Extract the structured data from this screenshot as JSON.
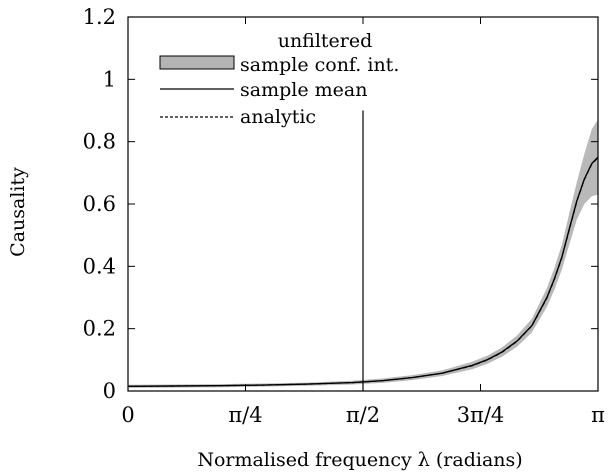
{
  "chart_data": {
    "type": "line",
    "xlabel": "Normalised frequency λ (radians)",
    "ylabel": "Causality",
    "xlim": [
      0,
      3.14159
    ],
    "ylim": [
      0,
      1.2
    ],
    "x_ticks": [
      {
        "value": 0,
        "label": "0"
      },
      {
        "value": 0.785398,
        "label": "π/4"
      },
      {
        "value": 1.570796,
        "label": "π/2"
      },
      {
        "value": 2.356194,
        "label": "3π/4"
      },
      {
        "value": 3.141593,
        "label": "π"
      }
    ],
    "y_ticks": [
      {
        "value": 0,
        "label": "0"
      },
      {
        "value": 0.2,
        "label": "0.2"
      },
      {
        "value": 0.4,
        "label": "0.4"
      },
      {
        "value": 0.6,
        "label": "0.6"
      },
      {
        "value": 0.8,
        "label": "0.8"
      },
      {
        "value": 1.0,
        "label": "1"
      },
      {
        "value": 1.2,
        "label": "1.2"
      }
    ],
    "grid": false,
    "legend": {
      "title": "unfiltered",
      "placement": "top-left",
      "entries": [
        "sample conf. int.",
        "sample mean",
        "analytic"
      ]
    },
    "vertical_marker": {
      "x": 1.570796,
      "y_top": 0.9
    },
    "x": [
      0,
      0.3,
      0.6,
      0.9,
      1.2,
      1.5,
      1.7,
      1.9,
      2.1,
      2.3,
      2.4,
      2.5,
      2.6,
      2.7,
      2.8,
      2.85,
      2.9,
      2.95,
      3.0,
      3.05,
      3.1,
      3.14
    ],
    "series": [
      {
        "name": "sample mean",
        "style": "solid",
        "values": [
          0.015,
          0.016,
          0.017,
          0.019,
          0.022,
          0.027,
          0.033,
          0.043,
          0.057,
          0.082,
          0.1,
          0.125,
          0.16,
          0.21,
          0.3,
          0.36,
          0.43,
          0.52,
          0.61,
          0.68,
          0.73,
          0.75
        ]
      },
      {
        "name": "analytic",
        "style": "dashed",
        "values": [
          0.015,
          0.016,
          0.017,
          0.019,
          0.022,
          0.027,
          0.033,
          0.043,
          0.057,
          0.081,
          0.099,
          0.124,
          0.159,
          0.209,
          0.298,
          0.358,
          0.428,
          0.518,
          0.608,
          0.678,
          0.728,
          0.748
        ]
      },
      {
        "name": "sample conf. int.",
        "style": "band",
        "lower": [
          0.01,
          0.011,
          0.012,
          0.014,
          0.017,
          0.021,
          0.026,
          0.035,
          0.048,
          0.07,
          0.087,
          0.11,
          0.142,
          0.188,
          0.27,
          0.325,
          0.39,
          0.47,
          0.55,
          0.6,
          0.625,
          0.63
        ],
        "upper": [
          0.02,
          0.021,
          0.022,
          0.024,
          0.027,
          0.033,
          0.04,
          0.051,
          0.066,
          0.094,
          0.113,
          0.14,
          0.178,
          0.232,
          0.33,
          0.395,
          0.47,
          0.57,
          0.67,
          0.76,
          0.84,
          0.87
        ]
      }
    ]
  }
}
